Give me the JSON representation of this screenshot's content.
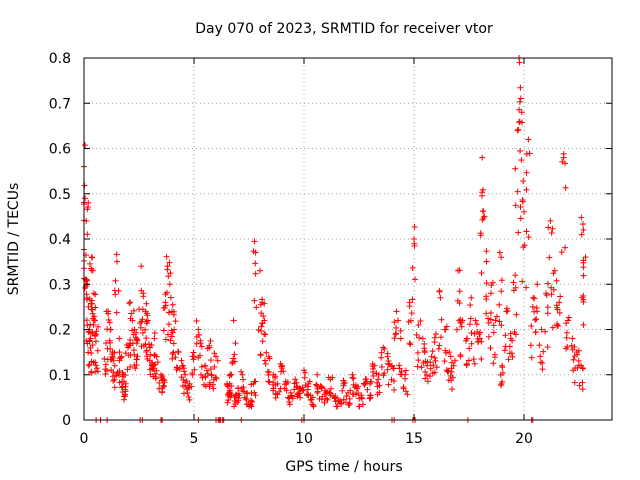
{
  "chart_data": {
    "type": "scatter",
    "title": "Day 070 of 2023, SRMTID for receiver vtor",
    "xlabel": "GPS time / hours",
    "ylabel": "SRMTID / TECUs",
    "xlim": [
      0,
      24
    ],
    "ylim": [
      0,
      0.8
    ],
    "xticks": [
      0,
      5,
      10,
      15,
      20
    ],
    "xtick_labels": [
      "0",
      "5",
      "10",
      "15",
      "20"
    ],
    "yticks": [
      0,
      0.1,
      0.2,
      0.3,
      0.4,
      0.5,
      0.6,
      0.7,
      0.8
    ],
    "ytick_labels": [
      "0",
      "0.1",
      "0.2",
      "0.3",
      "0.4",
      "0.5",
      "0.6",
      "0.7",
      "0.8"
    ],
    "grid": true,
    "marker": "+",
    "color": "#ff0000",
    "series": [
      {
        "name": "SRMTID",
        "x": [
          0.0,
          0.05,
          0.1,
          0.15,
          0.2,
          0.25,
          0.3,
          0.35,
          0.4,
          0.45,
          0.5,
          0.55,
          1.0,
          1.1,
          1.2,
          1.3,
          1.4,
          1.5,
          1.6,
          1.7,
          1.8,
          1.9,
          2.0,
          2.1,
          2.2,
          2.3,
          2.4,
          2.6,
          2.7,
          2.8,
          2.9,
          3.0,
          3.1,
          3.2,
          3.3,
          3.5,
          3.6,
          3.7,
          3.8,
          3.9,
          4.0,
          4.1,
          4.3,
          4.5,
          4.6,
          4.8,
          5.0,
          5.2,
          5.3,
          5.5,
          5.7,
          5.8,
          6.0,
          6.5,
          6.6,
          6.7,
          6.8,
          6.9,
          7.0,
          7.2,
          7.4,
          7.6,
          7.7,
          7.8,
          8.0,
          8.1,
          8.2,
          8.4,
          8.6,
          8.8,
          9.0,
          9.2,
          9.4,
          9.6,
          9.8,
          10.0,
          10.2,
          10.4,
          10.6,
          10.8,
          11.0,
          11.2,
          11.4,
          11.6,
          11.8,
          12.0,
          12.2,
          12.4,
          12.6,
          12.8,
          13.0,
          13.2,
          13.4,
          13.6,
          13.8,
          14.0,
          14.2,
          14.4,
          14.6,
          14.8,
          15.0,
          15.2,
          15.4,
          15.6,
          15.8,
          16.0,
          16.2,
          16.4,
          16.6,
          16.8,
          17.0,
          17.2,
          17.4,
          17.6,
          17.8,
          18.0,
          18.1,
          18.2,
          18.3,
          18.5,
          18.7,
          18.9,
          19.0,
          19.2,
          19.4,
          19.6,
          19.7,
          19.8,
          19.9,
          20.0,
          20.2,
          20.4,
          20.6,
          20.8,
          21.0,
          21.2,
          21.4,
          21.6,
          21.8,
          22.0,
          22.2,
          22.4,
          22.6,
          22.7,
          22.8
        ],
        "y": [
          0.56,
          0.49,
          0.44,
          0.3,
          0.25,
          0.2,
          0.18,
          0.36,
          0.33,
          0.28,
          0.22,
          0.19,
          0.17,
          0.24,
          0.2,
          0.15,
          0.12,
          0.35,
          0.18,
          0.14,
          0.1,
          0.08,
          0.16,
          0.26,
          0.22,
          0.2,
          0.17,
          0.34,
          0.28,
          0.24,
          0.22,
          0.16,
          0.12,
          0.18,
          0.14,
          0.1,
          0.09,
          0.26,
          0.34,
          0.3,
          0.24,
          0.2,
          0.15,
          0.12,
          0.1,
          0.08,
          0.14,
          0.2,
          0.17,
          0.12,
          0.16,
          0.1,
          0.14,
          0.08,
          0.06,
          0.1,
          0.22,
          0.05,
          0.07,
          0.1,
          0.06,
          0.04,
          0.08,
          0.37,
          0.33,
          0.26,
          0.22,
          0.14,
          0.1,
          0.08,
          0.12,
          0.08,
          0.06,
          0.09,
          0.07,
          0.11,
          0.08,
          0.05,
          0.1,
          0.07,
          0.06,
          0.09,
          0.05,
          0.04,
          0.08,
          0.06,
          0.1,
          0.07,
          0.05,
          0.09,
          0.08,
          0.12,
          0.1,
          0.16,
          0.14,
          0.12,
          0.24,
          0.18,
          0.1,
          0.26,
          0.4,
          0.21,
          0.18,
          0.12,
          0.14,
          0.19,
          0.27,
          0.2,
          0.15,
          0.12,
          0.33,
          0.22,
          0.18,
          0.27,
          0.22,
          0.18,
          0.58,
          0.45,
          0.35,
          0.28,
          0.22,
          0.37,
          0.12,
          0.24,
          0.18,
          0.32,
          0.64,
          0.79,
          0.68,
          0.46,
          0.62,
          0.25,
          0.3,
          0.2,
          0.28,
          0.44,
          0.33,
          0.26,
          0.58,
          0.22,
          0.18,
          0.15,
          0.12,
          0.42,
          0.36
        ]
      }
    ],
    "zero_level_x": [
      0.55,
      0.75,
      1.05,
      2.55,
      2.65,
      3.5,
      3.55,
      5.2,
      6.0,
      6.1,
      6.15,
      6.2,
      6.3,
      6.35,
      7.15,
      9.9,
      10.0,
      14.0,
      14.1,
      14.95,
      15.05,
      17.45,
      20.35,
      20.4
    ]
  }
}
